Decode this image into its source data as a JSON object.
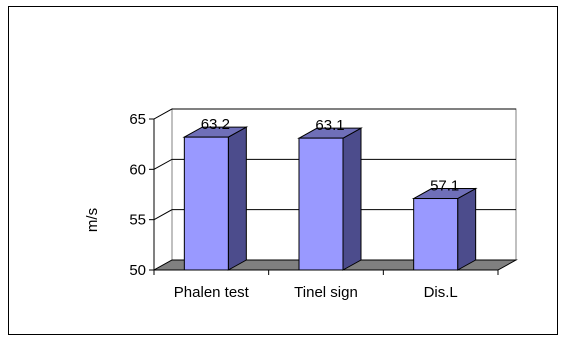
{
  "chart_data": {
    "type": "bar",
    "style": "3d-column",
    "categories": [
      "Phalen test",
      "Tinel sign",
      "Dis.L"
    ],
    "values": [
      63.2,
      63.1,
      57.1
    ],
    "data_labels": [
      "63.2",
      "63.1",
      "57.1"
    ],
    "title": "",
    "xlabel": "",
    "ylabel": "m/s",
    "ylim": [
      50,
      65
    ],
    "yticks": [
      50,
      55,
      60,
      65
    ],
    "ytick_labels": [
      "50",
      "55",
      "60",
      "65"
    ],
    "grid": true,
    "legend": "none",
    "colors": {
      "bar_front": "#9999ff",
      "bar_side": "#4c4c8c",
      "bar_top": "#6f6fb8",
      "floor": "#808080",
      "gridline": "#000000"
    }
  }
}
